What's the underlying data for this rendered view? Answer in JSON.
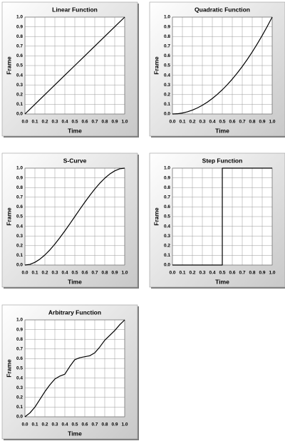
{
  "chart_data": [
    {
      "type": "line",
      "title": "Linear Function",
      "xlabel": "Time",
      "ylabel": "Frame",
      "x": [
        0,
        0.1,
        0.2,
        0.3,
        0.4,
        0.5,
        0.6,
        0.7,
        0.8,
        0.9,
        1
      ],
      "values": [
        0,
        0.1,
        0.2,
        0.3,
        0.4,
        0.5,
        0.6,
        0.7,
        0.8,
        0.9,
        1
      ],
      "color": "#000000",
      "grid": true,
      "xlim": [
        0,
        1
      ],
      "ylim": [
        0,
        1
      ],
      "xticks": [
        {
          "value": 0,
          "label": "0.0"
        },
        0.1,
        0.2,
        0.3,
        0.4,
        0.5,
        0.6,
        0.7,
        0.8,
        0.9,
        {
          "value": 1,
          "label": "1.0"
        }
      ],
      "yticks": [
        {
          "value": 0,
          "label": "0.0"
        },
        0.1,
        0.2,
        0.3,
        0.4,
        0.5,
        0.6,
        0.7,
        0.8,
        0.9,
        {
          "value": 1,
          "label": "1.0"
        }
      ]
    },
    {
      "type": "line",
      "title": "Quadratic Function",
      "xlabel": "Time",
      "ylabel": "Frame",
      "x": [
        0,
        0.05,
        0.1,
        0.15,
        0.2,
        0.25,
        0.3,
        0.35,
        0.4,
        0.45,
        0.5,
        0.55,
        0.6,
        0.65,
        0.7,
        0.75,
        0.8,
        0.85,
        0.9,
        0.95,
        1
      ],
      "values": [
        0,
        0.0025,
        0.01,
        0.0225,
        0.04,
        0.0625,
        0.09,
        0.1225,
        0.16,
        0.2025,
        0.25,
        0.3025,
        0.36,
        0.4225,
        0.49,
        0.5625,
        0.64,
        0.7225,
        0.81,
        0.9025,
        1
      ],
      "color": "#000000",
      "grid": true,
      "xlim": [
        0,
        1
      ],
      "ylim": [
        0,
        1
      ],
      "xticks": [
        {
          "value": 0,
          "label": "0.0"
        },
        0.1,
        0.2,
        0.3,
        0.4,
        0.5,
        0.6,
        0.7,
        0.8,
        0.9,
        {
          "value": 1,
          "label": "1.0"
        }
      ],
      "yticks": [
        {
          "value": 0,
          "label": "0.0"
        },
        0.1,
        0.2,
        0.3,
        0.4,
        0.5,
        0.6,
        0.7,
        0.8,
        0.9,
        {
          "value": 1,
          "label": "1.0"
        }
      ]
    },
    {
      "type": "line",
      "title": "S-Curve",
      "xlabel": "Time",
      "ylabel": "Frame",
      "x": [
        0,
        0.05,
        0.1,
        0.15,
        0.2,
        0.25,
        0.3,
        0.35,
        0.4,
        0.45,
        0.5,
        0.55,
        0.6,
        0.65,
        0.7,
        0.75,
        0.8,
        0.85,
        0.9,
        0.95,
        1
      ],
      "values": [
        0,
        0.007,
        0.028,
        0.061,
        0.104,
        0.156,
        0.216,
        0.282,
        0.352,
        0.425,
        0.5,
        0.575,
        0.648,
        0.718,
        0.784,
        0.844,
        0.896,
        0.939,
        0.972,
        0.993,
        1
      ],
      "color": "#000000",
      "grid": true,
      "xlim": [
        0,
        1
      ],
      "ylim": [
        0,
        1
      ],
      "xticks": [
        {
          "value": 0,
          "label": "0.0"
        },
        0.1,
        0.2,
        0.3,
        0.4,
        0.5,
        0.6,
        0.7,
        0.8,
        0.9,
        {
          "value": 1,
          "label": "1.0"
        }
      ],
      "yticks": [
        {
          "value": 0,
          "label": "0.0"
        },
        0.1,
        0.2,
        0.3,
        0.4,
        0.5,
        0.6,
        0.7,
        0.8,
        0.9,
        {
          "value": 1,
          "label": "1.0"
        }
      ]
    },
    {
      "type": "line",
      "title": "Step Function",
      "xlabel": "Time",
      "ylabel": "Frame",
      "x": [
        0,
        0.5,
        0.5,
        1
      ],
      "values": [
        0,
        0,
        1,
        1
      ],
      "color": "#000000",
      "grid": true,
      "xlim": [
        0,
        1
      ],
      "ylim": [
        0,
        1
      ],
      "xticks": [
        {
          "value": 0,
          "label": "0.0"
        },
        0.1,
        0.2,
        0.3,
        0.4,
        0.5,
        0.6,
        0.7,
        0.8,
        0.9,
        {
          "value": 1,
          "label": "1.0"
        }
      ],
      "yticks": [
        {
          "value": 0,
          "label": "0.0"
        },
        0.1,
        0.2,
        0.3,
        0.4,
        0.5,
        0.6,
        0.7,
        0.8,
        0.9,
        {
          "value": 1,
          "label": "1.0"
        }
      ]
    },
    {
      "type": "line",
      "title": "Arbitrary Function",
      "xlabel": "Time",
      "ylabel": "Frame",
      "x": [
        0,
        0.05,
        0.1,
        0.15,
        0.2,
        0.25,
        0.3,
        0.35,
        0.4,
        0.45,
        0.5,
        0.55,
        0.6,
        0.65,
        0.7,
        0.75,
        0.8,
        0.85,
        0.9,
        0.95,
        1
      ],
      "values": [
        0,
        0.04,
        0.1,
        0.18,
        0.26,
        0.33,
        0.39,
        0.42,
        0.44,
        0.52,
        0.59,
        0.61,
        0.62,
        0.63,
        0.66,
        0.72,
        0.79,
        0.84,
        0.89,
        0.95,
        1
      ],
      "color": "#000000",
      "grid": true,
      "xlim": [
        0,
        1
      ],
      "ylim": [
        0,
        1
      ],
      "xticks": [
        {
          "value": 0,
          "label": "0.0"
        },
        0.1,
        0.2,
        0.3,
        0.4,
        0.5,
        0.6,
        0.7,
        0.8,
        0.9,
        {
          "value": 1,
          "label": "1.0"
        }
      ],
      "yticks": [
        {
          "value": 0,
          "label": "0.0"
        },
        0.1,
        0.2,
        0.3,
        0.4,
        0.5,
        0.6,
        0.7,
        0.8,
        0.9,
        {
          "value": 1,
          "label": "1.0"
        }
      ]
    }
  ]
}
